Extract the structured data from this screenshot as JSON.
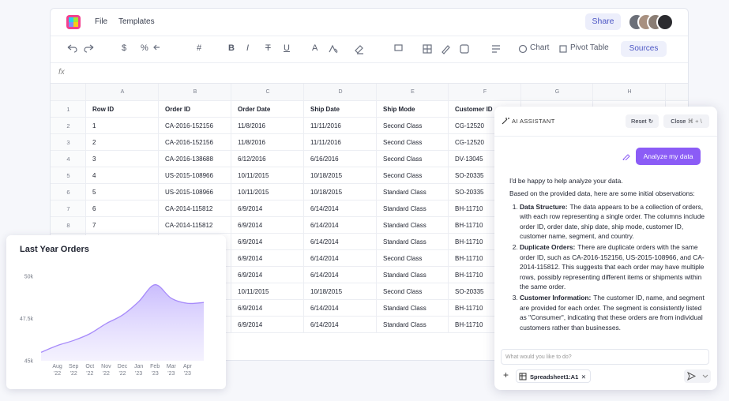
{
  "header": {
    "menu": [
      "File",
      "Templates"
    ],
    "share": "Share"
  },
  "toolbar": {
    "symbols": [
      "$",
      "%",
      "#"
    ],
    "text_styles": [
      "B",
      "I",
      "T",
      "U",
      "A"
    ],
    "chart": "Chart",
    "pivot": "Pivot Table",
    "sources": "Sources"
  },
  "formula_bar": {
    "label": "fx"
  },
  "sheet": {
    "columns": [
      "A",
      "B",
      "C",
      "D",
      "E",
      "F",
      "G",
      "H"
    ],
    "rows": [
      {
        "n": 1,
        "cells": [
          "Row ID",
          "Order ID",
          "Order Date",
          "Ship Date",
          "Ship Mode",
          "Customer ID"
        ]
      },
      {
        "n": 2,
        "cells": [
          "1",
          "CA-2016-152156",
          "11/8/2016",
          "11/11/2016",
          "Second Class",
          "CG-12520"
        ]
      },
      {
        "n": 3,
        "cells": [
          "2",
          "CA-2016-152156",
          "11/8/2016",
          "11/11/2016",
          "Second Class",
          "CG-12520"
        ]
      },
      {
        "n": 4,
        "cells": [
          "3",
          "CA-2016-138688",
          "6/12/2016",
          "6/16/2016",
          "Second Class",
          "DV-13045"
        ]
      },
      {
        "n": 5,
        "cells": [
          "4",
          "US-2015-108966",
          "10/11/2015",
          "10/18/2015",
          "Second Class",
          "SO-20335"
        ]
      },
      {
        "n": 6,
        "cells": [
          "5",
          "US-2015-108966",
          "10/11/2015",
          "10/18/2015",
          "Standard Class",
          "SO-20335"
        ]
      },
      {
        "n": 7,
        "cells": [
          "6",
          "CA-2014-115812",
          "6/9/2014",
          "6/14/2014",
          "Standard Class",
          "BH-11710"
        ]
      },
      {
        "n": 8,
        "cells": [
          "7",
          "CA-2014-115812",
          "6/9/2014",
          "6/14/2014",
          "Standard Class",
          "BH-11710"
        ]
      },
      {
        "n": null,
        "cells": [
          null,
          null,
          "6/9/2014",
          "6/14/2014",
          "Standard Class",
          "BH-11710"
        ]
      },
      {
        "n": null,
        "cells": [
          null,
          null,
          "6/9/2014",
          "6/14/2014",
          "Second Class",
          "BH-11710"
        ]
      },
      {
        "n": null,
        "cells": [
          null,
          null,
          "6/9/2014",
          "6/14/2014",
          "Standard Class",
          "BH-11710"
        ]
      },
      {
        "n": null,
        "cells": [
          null,
          null,
          "10/11/2015",
          "10/18/2015",
          "Second Class",
          "SO-20335"
        ]
      },
      {
        "n": null,
        "cells": [
          null,
          null,
          "6/9/2014",
          "6/14/2014",
          "Standard Class",
          "BH-11710"
        ]
      },
      {
        "n": null,
        "cells": [
          null,
          null,
          "6/9/2014",
          "6/14/2014",
          "Standard Class",
          "BH-11710"
        ]
      }
    ]
  },
  "chart_data": {
    "type": "area",
    "title": "Last Year Orders",
    "categories": [
      null,
      "Aug '22",
      "Sep '22",
      "Oct '22",
      "Nov '22",
      "Dec '22",
      "Jan '23",
      "Feb '23",
      "Mar '23",
      "Apr '23",
      null
    ],
    "values": [
      45500,
      45900,
      46200,
      46600,
      47200,
      47700,
      48500,
      49500,
      48700,
      48400,
      48450
    ],
    "color": "#a78bfa",
    "ylim": [
      45000,
      50000
    ],
    "yticks": [
      {
        "value": 45000,
        "label": "45k"
      },
      {
        "value": 47500,
        "label": "47.5k"
      },
      {
        "value": 50000,
        "label": "50k"
      }
    ],
    "grid": false
  },
  "assistant": {
    "title": "AI ASSISTANT",
    "reset": "Reset",
    "close": "Close",
    "shortcut": "⌘ + \\",
    "request": "Analyze my data",
    "intro": "I'd be happy to help analyze your data.",
    "lead": "Based on the provided data, here are some initial observations:",
    "points": [
      {
        "title": "Data Structure:",
        "text": "The data appears to be a collection of orders, with each row representing a single order. The columns include order ID, order date, ship date, ship mode, customer ID, customer name, segment, and country."
      },
      {
        "title": "Duplicate Orders:",
        "text": "There are duplicate orders with the same order ID, such as CA-2016-152156, US-2015-108966, and CA-2014-115812. This suggests that each order may have multiple rows, possibly representing different items or shipments within the same order."
      },
      {
        "title": "Customer Information:",
        "text": "The customer ID, name, and segment are provided for each order. The segment is consistently listed as \"Consumer\", indicating that these orders are from individual customers rather than businesses."
      }
    ],
    "input_placeholder": "What would you like to do?",
    "chip": "Spreadsheet1:A1"
  }
}
